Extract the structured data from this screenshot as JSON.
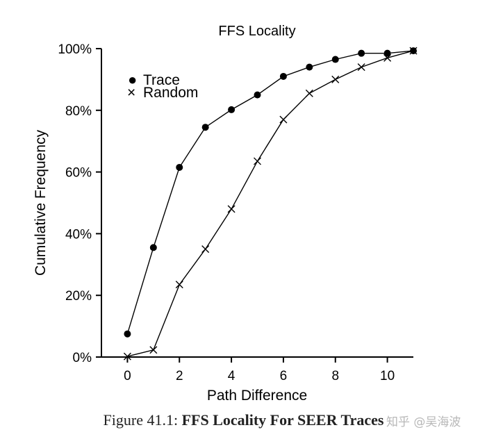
{
  "chart_data": {
    "type": "line",
    "title": "FFS Locality",
    "xlabel": "Path Difference",
    "ylabel": "Cumulative Frequency",
    "xlim": [
      -1,
      11
    ],
    "ylim": [
      0,
      100
    ],
    "x_ticks": [
      0,
      2,
      4,
      6,
      8,
      10
    ],
    "x_tick_labels": [
      "0",
      "2",
      "4",
      "6",
      "8",
      "10"
    ],
    "y_ticks": [
      0,
      20,
      40,
      60,
      80,
      100
    ],
    "y_tick_labels": [
      "0%",
      "20%",
      "40%",
      "60%",
      "80%",
      "100%"
    ],
    "grid": false,
    "legend_position": "top-left",
    "x": [
      0,
      1,
      2,
      3,
      4,
      5,
      6,
      7,
      8,
      9,
      10,
      11
    ],
    "series": [
      {
        "name": "Trace",
        "marker": "dot",
        "legend_symbol": "●",
        "values": [
          7.5,
          35.5,
          61.5,
          74.5,
          80.2,
          85.0,
          91.0,
          94.0,
          96.5,
          98.5,
          98.5,
          99.3
        ]
      },
      {
        "name": "Random",
        "marker": "cross",
        "legend_symbol": "×",
        "values": [
          0.2,
          2.3,
          23.5,
          35.0,
          48.0,
          63.5,
          77.0,
          85.5,
          90.0,
          94.0,
          97.0,
          99.3
        ]
      }
    ]
  },
  "caption": {
    "prefix": "Figure 41.1: ",
    "title": "FFS Locality For SEER Traces"
  },
  "watermark": {
    "text": "知乎 @吴海波"
  },
  "colors": {
    "ink": "#000000",
    "caption": "#222222",
    "watermark": "#b8b8b8"
  }
}
